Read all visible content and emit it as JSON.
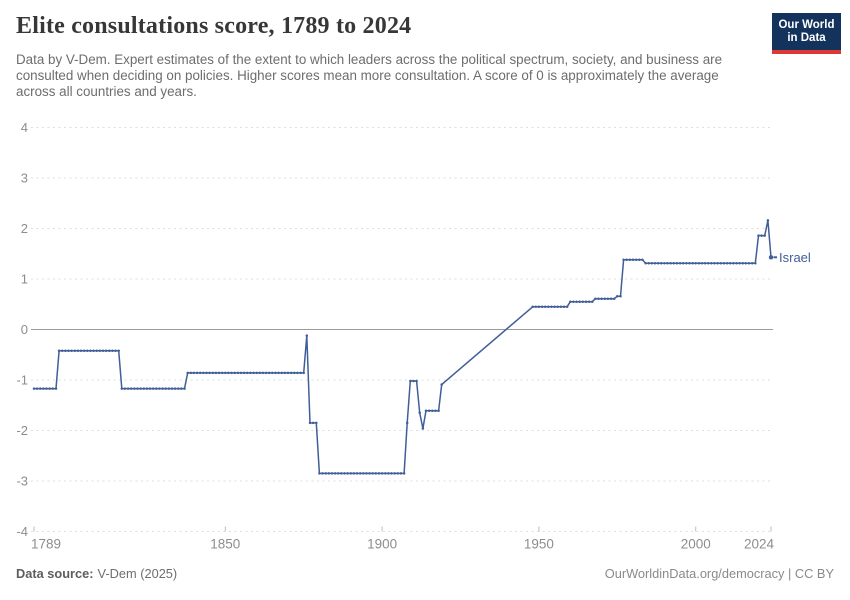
{
  "header": {
    "title": "Elite consultations score, 1789 to 2024",
    "subtitle": "Data by V-Dem. Expert estimates of the extent to which leaders across the political spectrum, society, and business are consulted when deciding on policies. Higher scores mean more consultation. A score of 0 is approximately the average across all countries and years.",
    "logo": {
      "line1": "Our World",
      "line2": "in Data"
    }
  },
  "footer": {
    "source_label": "Data source:",
    "source_value": "V-Dem (2025)",
    "link_text": "OurWorldinData.org/democracy | CC BY"
  },
  "colors": {
    "line": "#405e98",
    "entity_label": "#405e98",
    "grid": "#dedede",
    "zero_line": "#9b9b9b",
    "axis_text": "#8d8d8d",
    "tick_mark": "#bdbdbd",
    "logo_bg": "#14335c",
    "logo_stripe": "#d93a34"
  },
  "chart_data": {
    "type": "line",
    "title": "Elite consultations score, 1789 to 2024",
    "entity_label": "Israel",
    "xlabel": "",
    "ylabel": "",
    "x_range": [
      1789,
      2024
    ],
    "y_range": [
      -4,
      4
    ],
    "x_ticks": [
      1789,
      1850,
      1900,
      1950,
      2000,
      2024
    ],
    "y_ticks": [
      4,
      3,
      2,
      1,
      0,
      -1,
      -2,
      -3,
      -4
    ],
    "grid": true,
    "legend_position": "end-of-line-label",
    "gap_note": "no yearly markers between 1919 and 1948; straight interpolated segment",
    "series": [
      {
        "name": "Israel",
        "step_segments": [
          {
            "from": 1789,
            "to": 1796,
            "value": -1.17
          },
          {
            "from": 1797,
            "to": 1816,
            "value": -0.42
          },
          {
            "from": 1817,
            "to": 1837,
            "value": -1.17
          },
          {
            "from": 1838,
            "to": 1875,
            "value": -0.86
          },
          {
            "from": 1876,
            "to": 1876,
            "value": -0.12
          },
          {
            "from": 1877,
            "to": 1879,
            "value": -1.85
          },
          {
            "from": 1880,
            "to": 1907,
            "value": -2.85
          },
          {
            "from": 1908,
            "to": 1908,
            "value": -1.85
          },
          {
            "from": 1909,
            "to": 1911,
            "value": -1.02
          },
          {
            "from": 1912,
            "to": 1912,
            "value": -1.65
          },
          {
            "from": 1913,
            "to": 1913,
            "value": -1.96
          },
          {
            "from": 1914,
            "to": 1918,
            "value": -1.61
          },
          {
            "from": 1919,
            "to": 1919,
            "value": -1.09
          },
          {
            "from": 1948,
            "to": 1959,
            "value": 0.45
          },
          {
            "from": 1960,
            "to": 1967,
            "value": 0.55
          },
          {
            "from": 1968,
            "to": 1974,
            "value": 0.61
          },
          {
            "from": 1975,
            "to": 1976,
            "value": 0.66
          },
          {
            "from": 1977,
            "to": 1983,
            "value": 1.38
          },
          {
            "from": 1984,
            "to": 2019,
            "value": 1.31
          },
          {
            "from": 2020,
            "to": 2022,
            "value": 1.86
          },
          {
            "from": 2023,
            "to": 2023,
            "value": 2.16
          },
          {
            "from": 2024,
            "to": 2024,
            "value": 1.43
          }
        ]
      }
    ]
  }
}
